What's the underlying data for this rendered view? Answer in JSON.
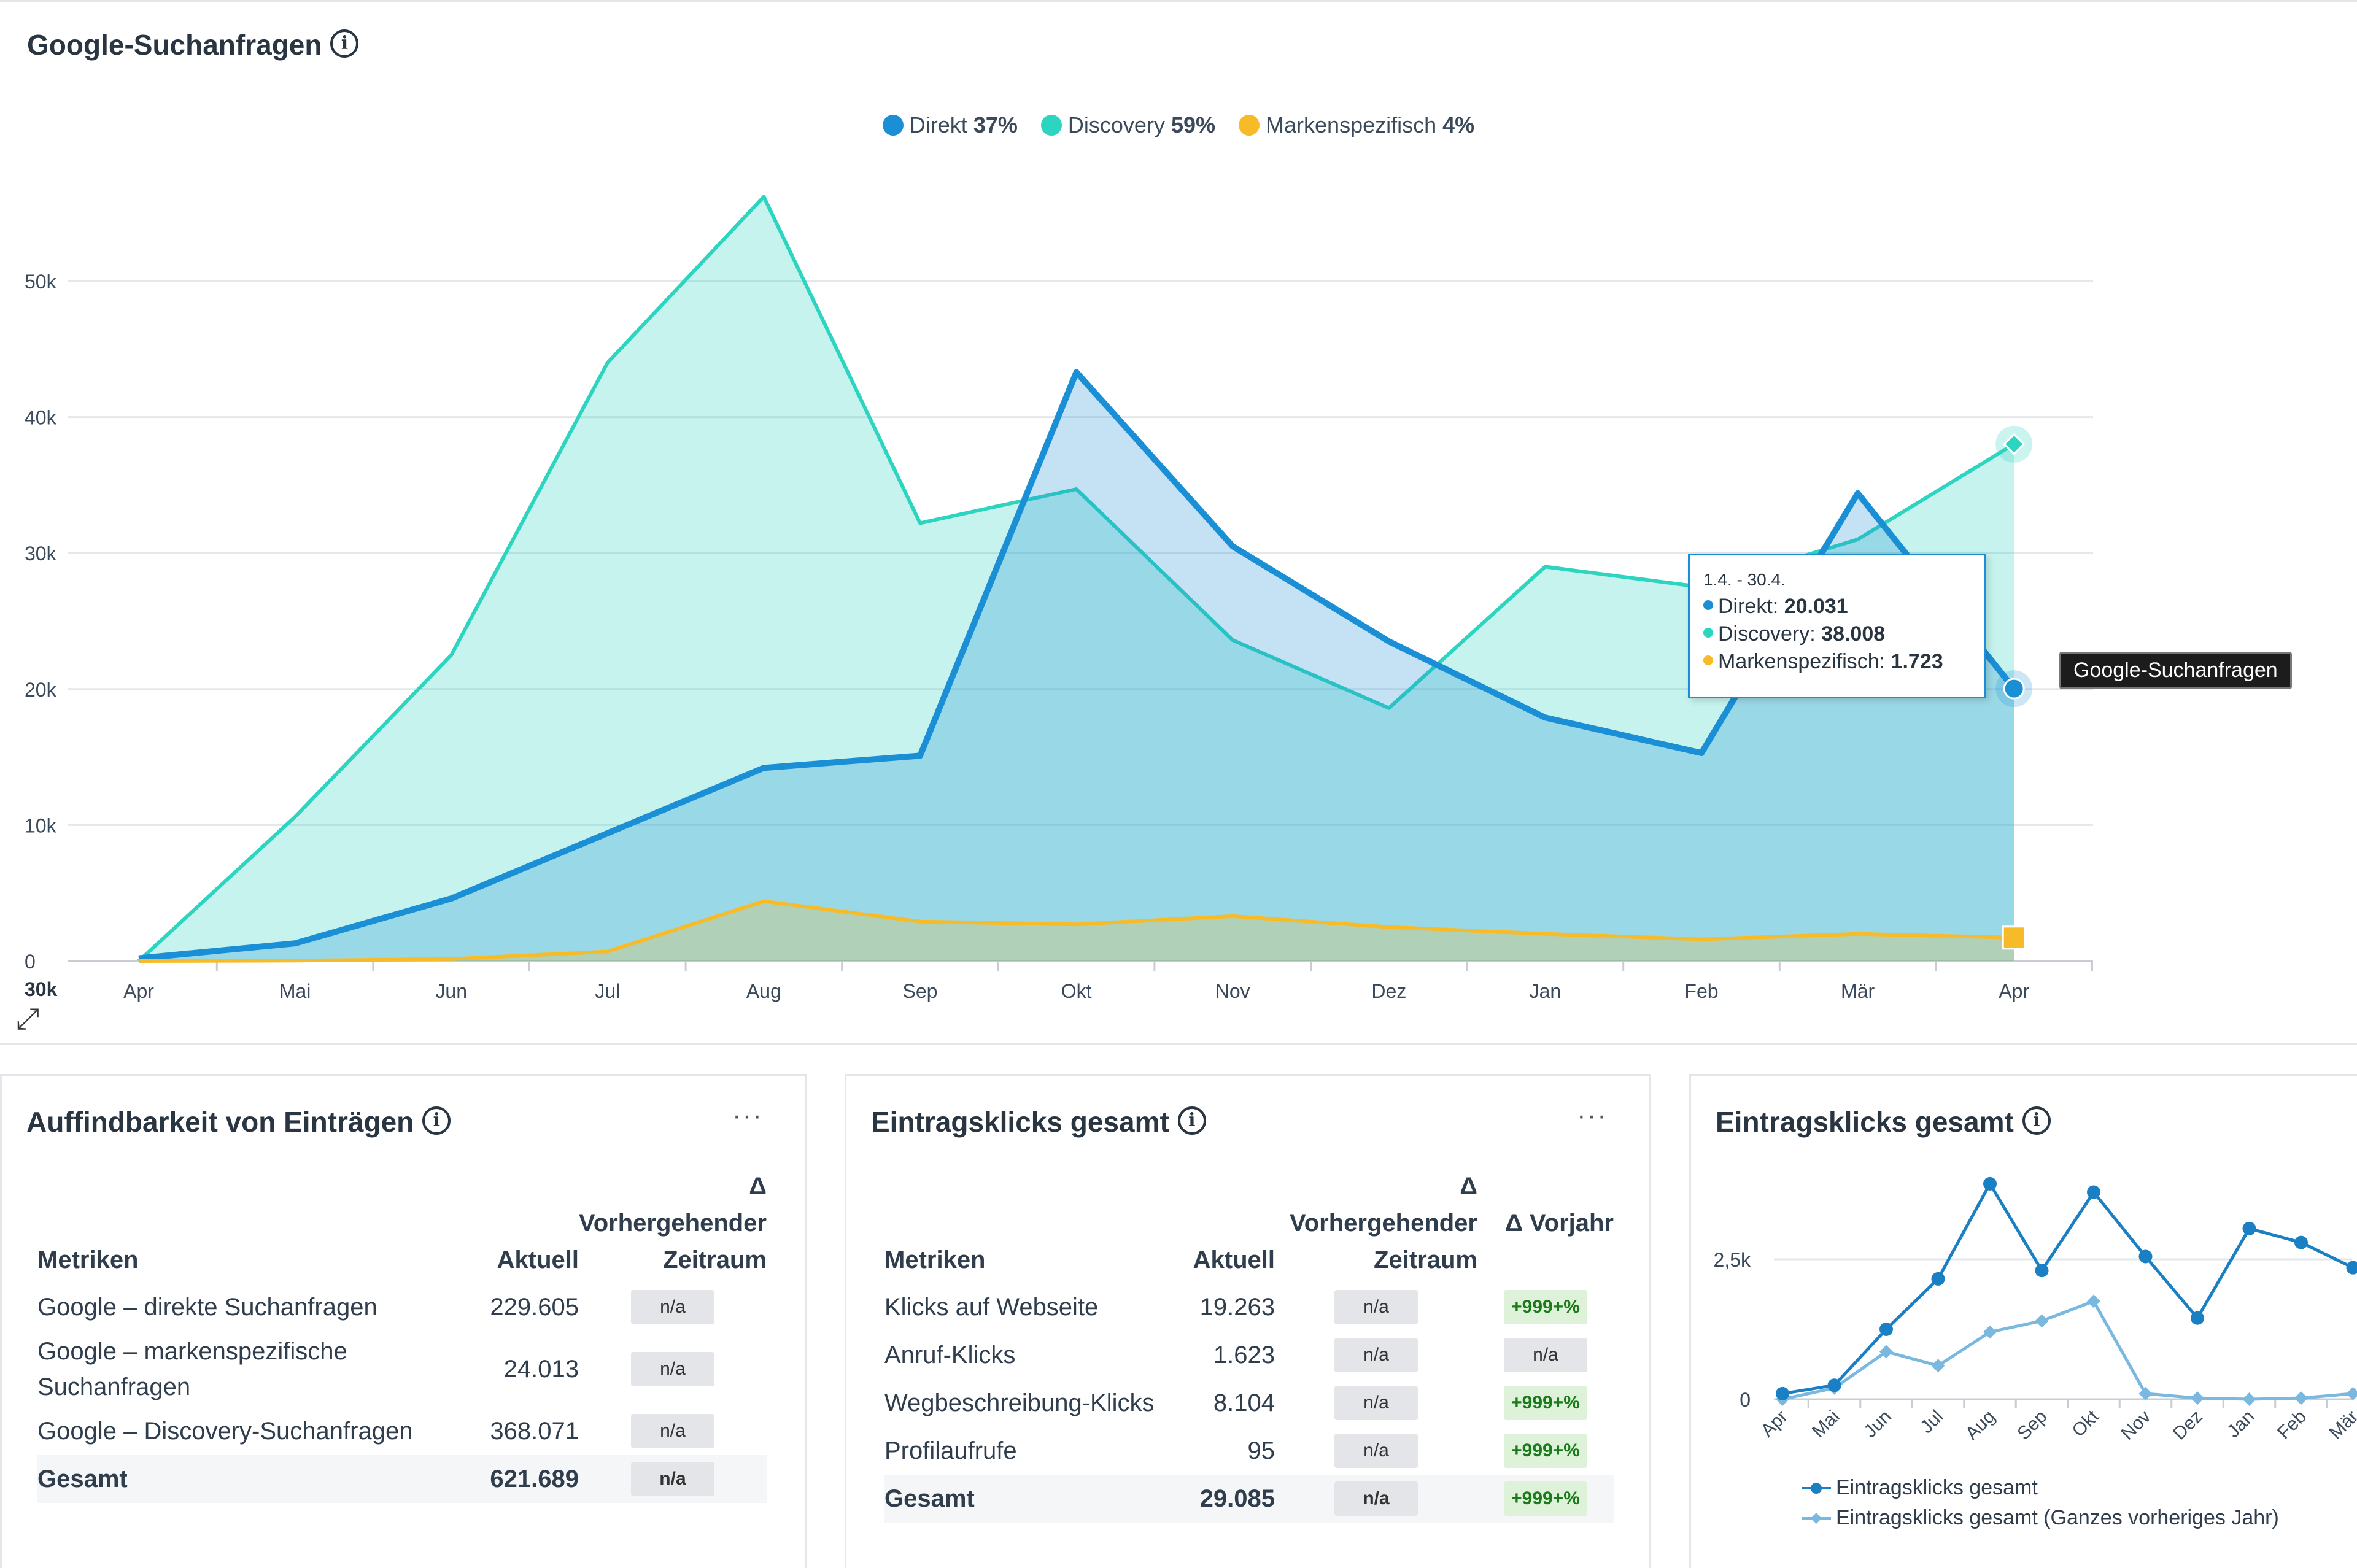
{
  "main": {
    "title": "Google-Suchanfragen",
    "info_icon": "info-icon",
    "legend": [
      {
        "label": "Direkt",
        "pct": "37%",
        "color": "#1b8fd6"
      },
      {
        "label": "Discovery",
        "pct": "59%",
        "color": "#2dd4bf"
      },
      {
        "label": "Markenspezifisch",
        "pct": "4%",
        "color": "#f7bb2a"
      }
    ],
    "tooltip": {
      "range": "1.4. - 30.4.",
      "rows": [
        {
          "label": "Direkt:",
          "value": "20.031",
          "color": "#1b8fd6"
        },
        {
          "label": "Discovery:",
          "value": "38.008",
          "color": "#2dd4bf"
        },
        {
          "label": "Markenspezifisch:",
          "value": "1.723",
          "color": "#f7bb2a"
        }
      ]
    },
    "series_label": "Google-Suchanfragen",
    "expand_icon": "expand-icon",
    "axis_extra_label": "30k"
  },
  "chart_data": [
    {
      "type": "area",
      "title": "Google-Suchanfragen",
      "categories": [
        "Apr",
        "Mai",
        "Jun",
        "Jul",
        "Aug",
        "Sep",
        "Okt",
        "Nov",
        "Dez",
        "Jan",
        "Feb",
        "Mär",
        "Apr"
      ],
      "yticks": [
        0,
        10000,
        20000,
        30000,
        40000,
        50000
      ],
      "ytick_labels": [
        "0",
        "10k",
        "20k",
        "30k",
        "40k",
        "50k"
      ],
      "ylim": [
        0,
        58000
      ],
      "series": [
        {
          "name": "Discovery",
          "color": "#2dd4bf",
          "values": [
            0,
            10600,
            22500,
            44000,
            56200,
            32200,
            34700,
            23600,
            18600,
            29000,
            27500,
            31000,
            38008
          ]
        },
        {
          "name": "Direkt",
          "color": "#1b8fd6",
          "values": [
            200,
            1300,
            4600,
            9400,
            14200,
            15100,
            43300,
            30500,
            23500,
            17900,
            15300,
            34400,
            20031
          ]
        },
        {
          "name": "Markenspezifisch",
          "color": "#f7bb2a",
          "values": [
            0,
            30,
            150,
            700,
            4400,
            2900,
            2700,
            3300,
            2500,
            2000,
            1600,
            2000,
            1723
          ]
        }
      ]
    },
    {
      "type": "line",
      "title": "Eintragsklicks gesamt",
      "categories": [
        "Apr",
        "Mai",
        "Jun",
        "Jul",
        "Aug",
        "Sep",
        "Okt",
        "Nov",
        "Dez",
        "Jan",
        "Feb",
        "Mär"
      ],
      "yticks": [
        0,
        2500
      ],
      "ytick_labels": [
        "0",
        "2,5k"
      ],
      "ylim": [
        0,
        3700
      ],
      "series": [
        {
          "name": "Eintragsklicks gesamt",
          "color": "#1b7fc4",
          "values": [
            100,
            250,
            1250,
            2150,
            3850,
            2300,
            3700,
            2550,
            1450,
            3050,
            2800,
            2350
          ]
        },
        {
          "name": "Eintragsklicks gesamt (Ganzes vorheriges Jahr)",
          "color": "#7ab8e0",
          "values": [
            0,
            200,
            850,
            600,
            1200,
            1400,
            1750,
            100,
            20,
            0,
            20,
            100
          ]
        }
      ]
    }
  ],
  "card1": {
    "title": "Auffindbarkeit von Einträgen",
    "more": "···",
    "headers": {
      "metric": "Metriken",
      "current": "Aktuell",
      "delta_symbol": "Δ",
      "prev": "Vorhergehender",
      "prev2": "Zeitraum"
    },
    "rows": [
      {
        "metric": "Google – direkte Suchanfragen",
        "current": "229.605",
        "prev": "n/a"
      },
      {
        "metric": "Google – markenspezifische Suchanfragen",
        "current": "24.013",
        "prev": "n/a"
      },
      {
        "metric": "Google – Discovery-Suchanfragen",
        "current": "368.071",
        "prev": "n/a"
      }
    ],
    "total": {
      "metric": "Gesamt",
      "current": "621.689",
      "prev": "n/a"
    }
  },
  "card2": {
    "title": "Eintragsklicks gesamt",
    "more": "···",
    "headers": {
      "metric": "Metriken",
      "current": "Aktuell",
      "delta_symbol": "Δ",
      "prev": "Vorhergehender",
      "prev2": "Zeitraum",
      "yoy": "Δ Vorjahr"
    },
    "rows": [
      {
        "metric": "Klicks auf Webseite",
        "current": "19.263",
        "prev": "n/a",
        "yoy": "+999+%"
      },
      {
        "metric": "Anruf-Klicks",
        "current": "1.623",
        "prev": "n/a",
        "yoy": "n/a"
      },
      {
        "metric": "Wegbeschreibung-Klicks",
        "current": "8.104",
        "prev": "n/a",
        "yoy": "+999+%"
      },
      {
        "metric": "Profilaufrufe",
        "current": "95",
        "prev": "n/a",
        "yoy": "+999+%"
      }
    ],
    "total": {
      "metric": "Gesamt",
      "current": "29.085",
      "prev": "n/a",
      "yoy": "+999+%"
    }
  },
  "card3": {
    "title": "Eintragsklicks gesamt",
    "legend": [
      "Eintragsklicks gesamt",
      "Eintragsklicks gesamt (Ganzes vorheriges Jahr)"
    ]
  }
}
